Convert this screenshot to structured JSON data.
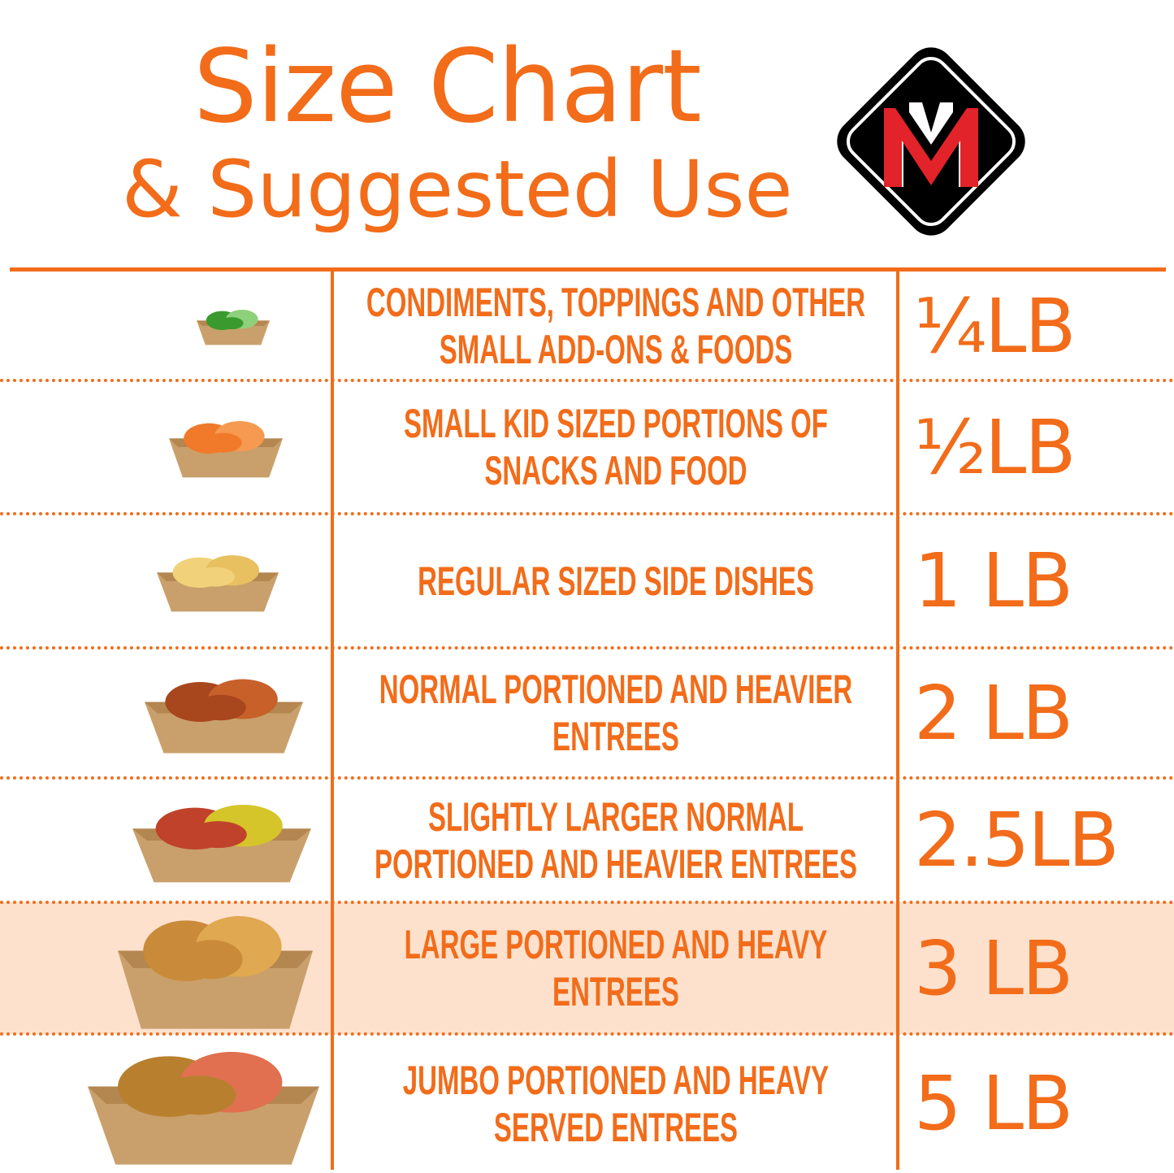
{
  "header": {
    "title_line1": "Size Chart",
    "title_line2": "& Suggested Use",
    "logo": {
      "letters": "M",
      "colors": {
        "background": "#000000",
        "red": "#e2232a",
        "white": "#ffffff"
      }
    }
  },
  "colors": {
    "accent": "#f26c1a",
    "highlight_row": "#fde1cd",
    "tray": "#c9a06b"
  },
  "rows": [
    {
      "image": "cucumber-slices-tray",
      "description": "CONDIMENTS, TOPPINGS AND OTHER\nSMALL ADD-ONS & FOODS",
      "size": "¼LB",
      "highlighted": false
    },
    {
      "image": "baby-carrots-tray",
      "description": "SMALL KID SIZED PORTIONS OF\nSNACKS AND FOOD",
      "size": "½LB",
      "highlighted": false
    },
    {
      "image": "french-fries-tray",
      "description": "REGULAR SIZED SIDE DISHES",
      "size": "1 LB",
      "highlighted": false
    },
    {
      "image": "chicken-wings-tray",
      "description": "NORMAL PORTIONED AND HEAVIER\nENTREES",
      "size": "2 LB",
      "highlighted": false
    },
    {
      "image": "hot-dog-tray",
      "description": "SLIGHTLY LARGER NORMAL\nPORTIONED AND HEAVIER ENTREES",
      "size": "2.5LB",
      "highlighted": false
    },
    {
      "image": "burger-onion-rings-tray",
      "description": "LARGE PORTIONED AND HEAVY\nENTREES",
      "size": "3 LB",
      "highlighted": true
    },
    {
      "image": "shrimp-noodles-tray",
      "description": "JUMBO PORTIONED AND HEAVY\nSERVED ENTREES",
      "size": "5 LB",
      "highlighted": false
    }
  ]
}
